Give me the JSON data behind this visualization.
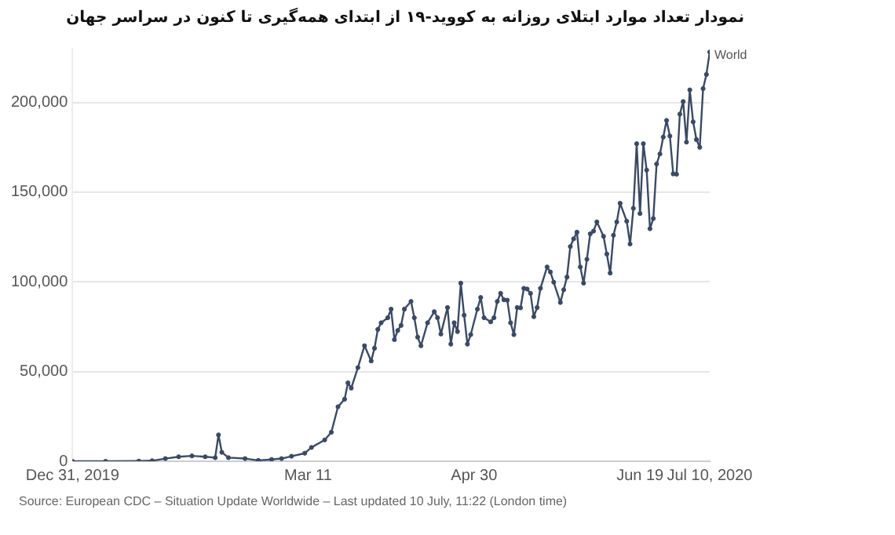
{
  "chart_data": {
    "type": "line",
    "title": "نمودار تعداد موارد ابتلای روزانه به کووید-۱۹ از ابتدای همه‌گیری تا کنون در سراسر جهان",
    "annotations": [
      "Source: European CDC – Situation Update Worldwide – Last updated 10 July, 11:22 (London time)"
    ],
    "x": [
      "2019-12-31",
      "2020-01-10",
      "2020-01-20",
      "2020-01-24",
      "2020-01-28",
      "2020-02-01",
      "2020-02-05",
      "2020-02-09",
      "2020-02-12",
      "2020-02-13",
      "2020-02-14",
      "2020-02-16",
      "2020-02-21",
      "2020-02-25",
      "2020-02-29",
      "2020-03-03",
      "2020-03-06",
      "2020-03-10",
      "2020-03-12",
      "2020-03-16",
      "2020-03-18",
      "2020-03-20",
      "2020-03-22",
      "2020-03-23",
      "2020-03-24",
      "2020-03-26",
      "2020-03-28",
      "2020-03-30",
      "2020-03-31",
      "2020-04-01",
      "2020-04-02",
      "2020-04-04",
      "2020-04-05",
      "2020-04-06",
      "2020-04-07",
      "2020-04-08",
      "2020-04-09",
      "2020-04-11",
      "2020-04-12",
      "2020-04-13",
      "2020-04-14",
      "2020-04-16",
      "2020-04-18",
      "2020-04-19",
      "2020-04-20",
      "2020-04-22",
      "2020-04-23",
      "2020-04-24",
      "2020-04-25",
      "2020-04-26",
      "2020-04-27",
      "2020-04-28",
      "2020-04-29",
      "2020-05-01",
      "2020-05-02",
      "2020-05-03",
      "2020-05-05",
      "2020-05-06",
      "2020-05-07",
      "2020-05-08",
      "2020-05-09",
      "2020-05-10",
      "2020-05-11",
      "2020-05-12",
      "2020-05-13",
      "2020-05-14",
      "2020-05-15",
      "2020-05-16",
      "2020-05-17",
      "2020-05-18",
      "2020-05-19",
      "2020-05-20",
      "2020-05-22",
      "2020-05-23",
      "2020-05-24",
      "2020-05-26",
      "2020-05-27",
      "2020-05-28",
      "2020-05-29",
      "2020-05-30",
      "2020-05-31",
      "2020-06-01",
      "2020-06-02",
      "2020-06-03",
      "2020-06-04",
      "2020-06-05",
      "2020-06-06",
      "2020-06-08",
      "2020-06-09",
      "2020-06-10",
      "2020-06-11",
      "2020-06-12",
      "2020-06-13",
      "2020-06-15",
      "2020-06-16",
      "2020-06-17",
      "2020-06-18",
      "2020-06-19",
      "2020-06-20",
      "2020-06-21",
      "2020-06-22",
      "2020-06-23",
      "2020-06-24",
      "2020-06-25",
      "2020-06-26",
      "2020-06-27",
      "2020-06-28",
      "2020-06-29",
      "2020-06-30",
      "2020-07-01",
      "2020-07-02",
      "2020-07-03",
      "2020-07-04",
      "2020-07-05",
      "2020-07-06",
      "2020-07-07",
      "2020-07-08",
      "2020-07-09",
      "2020-07-10"
    ],
    "series": [
      {
        "name": "World",
        "color": "#3b4a64",
        "values": [
          0,
          0,
          100,
          300,
          1500,
          2500,
          3000,
          2500,
          2000,
          14700,
          5000,
          2000,
          1500,
          500,
          1000,
          1500,
          2800,
          4500,
          7700,
          11900,
          16200,
          30400,
          34600,
          43700,
          40800,
          52200,
          64400,
          55900,
          63000,
          73500,
          77200,
          80000,
          84800,
          67800,
          72900,
          75700,
          84800,
          89100,
          80000,
          69200,
          64400,
          77200,
          83400,
          80000,
          70900,
          85700,
          65300,
          77200,
          72300,
          99300,
          81400,
          65300,
          70600,
          84800,
          91300,
          80000,
          77700,
          80000,
          89100,
          93600,
          90000,
          89800,
          77200,
          70600,
          85700,
          85500,
          96400,
          96000,
          93600,
          80600,
          85700,
          96400,
          108300,
          105500,
          99800,
          88500,
          95600,
          102700,
          119700,
          124000,
          127700,
          108300,
          99300,
          112600,
          126800,
          128300,
          133400,
          125400,
          115500,
          104900,
          126000,
          133400,
          143800,
          133800,
          121100,
          141000,
          177000,
          138100,
          177000,
          162300,
          129600,
          135300,
          165700,
          171300,
          180700,
          190000,
          181300,
          160200,
          160000,
          193500,
          200500,
          177900,
          207000,
          189200,
          179300,
          175000,
          207700,
          215600,
          228100
        ]
      }
    ],
    "xlim": [
      "2019-12-31",
      "2020-07-10"
    ],
    "xticks": [
      {
        "value": "2019-12-31",
        "label": "Dec 31, 2019"
      },
      {
        "value": "2020-03-11",
        "label": "Mar 11"
      },
      {
        "value": "2020-04-30",
        "label": "Apr 30"
      },
      {
        "value": "2020-06-19",
        "label": "Jun 19"
      },
      {
        "value": "2020-07-10",
        "label": "Jul 10, 2020"
      }
    ],
    "ylim": [
      0,
      230000
    ],
    "yticks": [
      0,
      {
        "value": 50000,
        "label": "50,000"
      },
      {
        "value": 100000,
        "label": "100,000"
      },
      {
        "value": 150000,
        "label": "150,000"
      },
      {
        "value": 200000,
        "label": "200,000"
      }
    ],
    "grid": "y",
    "legend": false,
    "marker": "circle",
    "line_style": "solid"
  }
}
